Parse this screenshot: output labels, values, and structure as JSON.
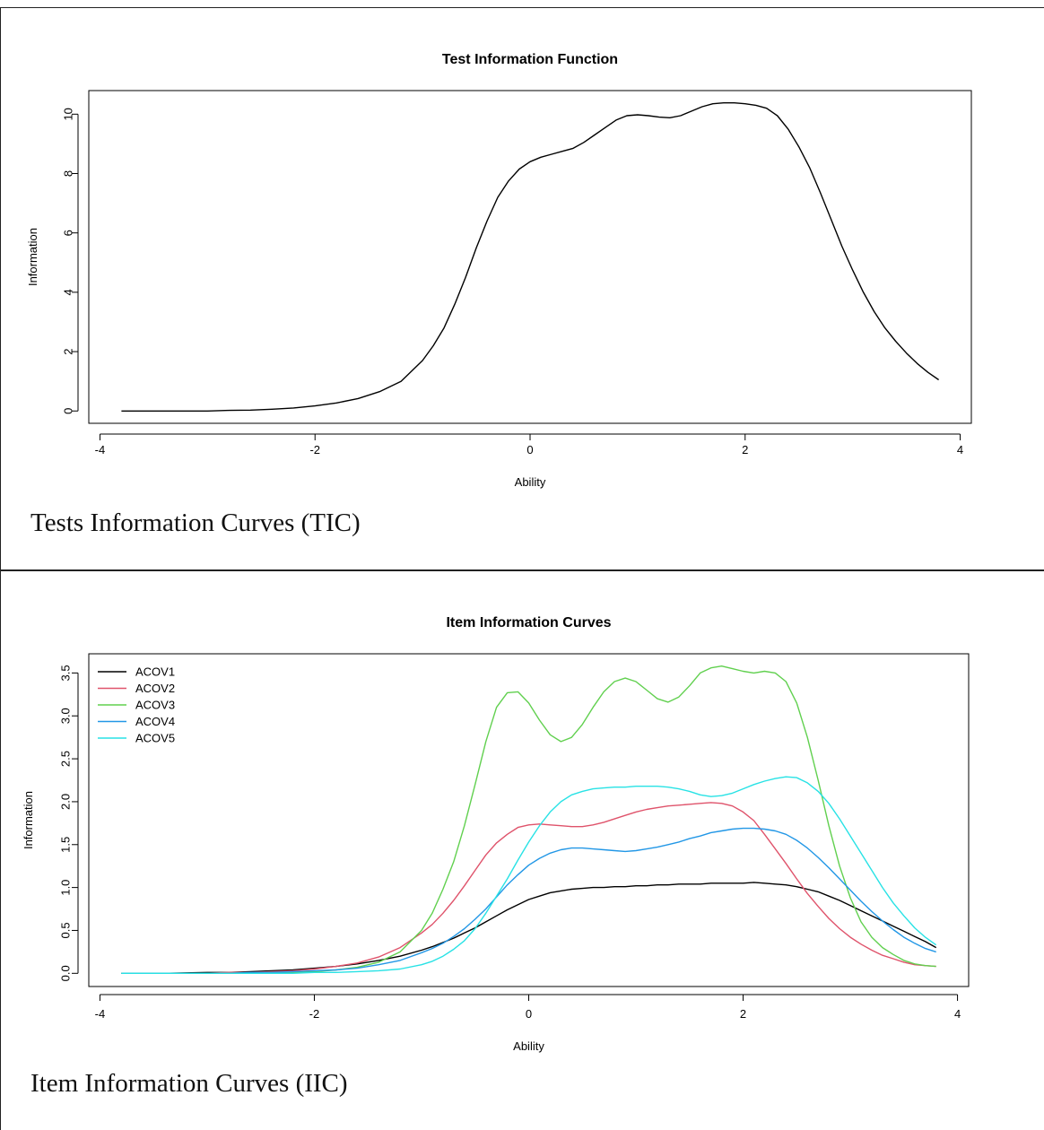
{
  "chart_data": [
    {
      "type": "line",
      "title": "Test Information Function",
      "xlabel": "Ability",
      "ylabel": "Information",
      "xlim": [
        -4,
        4
      ],
      "ylim": [
        0,
        10.5
      ],
      "xticks": [
        "-4",
        "-2",
        "0",
        "2",
        "4"
      ],
      "yticks": [
        "0",
        "2",
        "4",
        "6",
        "8",
        "10"
      ],
      "grid": false,
      "series": [
        {
          "color": "#000000",
          "x": [
            -3.8,
            -3.4,
            -3.0,
            -2.8,
            -2.6,
            -2.4,
            -2.2,
            -2.0,
            -1.8,
            -1.6,
            -1.4,
            -1.2,
            -1.0,
            -0.9,
            -0.8,
            -0.7,
            -0.6,
            -0.5,
            -0.4,
            -0.3,
            -0.2,
            -0.1,
            0.0,
            0.1,
            0.2,
            0.3,
            0.4,
            0.5,
            0.6,
            0.7,
            0.8,
            0.9,
            1.0,
            1.1,
            1.2,
            1.3,
            1.4,
            1.5,
            1.6,
            1.7,
            1.8,
            1.9,
            2.0,
            2.1,
            2.2,
            2.3,
            2.4,
            2.5,
            2.6,
            2.7,
            2.8,
            2.9,
            3.0,
            3.1,
            3.2,
            3.3,
            3.4,
            3.5,
            3.6,
            3.7,
            3.8
          ],
          "y": [
            0,
            0,
            0,
            0.02,
            0.03,
            0.06,
            0.1,
            0.17,
            0.27,
            0.42,
            0.65,
            1.0,
            1.7,
            2.2,
            2.8,
            3.6,
            4.5,
            5.5,
            6.4,
            7.2,
            7.75,
            8.15,
            8.4,
            8.55,
            8.65,
            8.75,
            8.85,
            9.05,
            9.3,
            9.55,
            9.8,
            9.95,
            9.98,
            9.95,
            9.9,
            9.88,
            9.95,
            10.1,
            10.25,
            10.35,
            10.38,
            10.38,
            10.35,
            10.3,
            10.2,
            9.95,
            9.5,
            8.9,
            8.2,
            7.35,
            6.45,
            5.55,
            4.75,
            4.0,
            3.35,
            2.8,
            2.35,
            1.95,
            1.6,
            1.3,
            1.05
          ]
        }
      ]
    },
    {
      "type": "line",
      "title": "Item Information Curves",
      "xlabel": "Ability",
      "ylabel": "Information",
      "xlim": [
        -4,
        4
      ],
      "ylim": [
        0,
        3.5
      ],
      "xticks": [
        "-4",
        "-2",
        "0",
        "2",
        "4"
      ],
      "yticks": [
        "0.0",
        "0.5",
        "1.0",
        "1.5",
        "2.0",
        "2.5",
        "3.0",
        "3.5"
      ],
      "grid": false,
      "legend": "top-left",
      "x": [
        -3.8,
        -3.4,
        -3.0,
        -2.8,
        -2.6,
        -2.4,
        -2.2,
        -2.0,
        -1.8,
        -1.6,
        -1.4,
        -1.2,
        -1.0,
        -0.9,
        -0.8,
        -0.7,
        -0.6,
        -0.5,
        -0.4,
        -0.3,
        -0.2,
        -0.1,
        0.0,
        0.1,
        0.2,
        0.3,
        0.4,
        0.5,
        0.6,
        0.7,
        0.8,
        0.9,
        1.0,
        1.1,
        1.2,
        1.3,
        1.4,
        1.5,
        1.6,
        1.7,
        1.8,
        1.9,
        2.0,
        2.1,
        2.2,
        2.3,
        2.4,
        2.5,
        2.6,
        2.7,
        2.8,
        2.9,
        3.0,
        3.1,
        3.2,
        3.3,
        3.4,
        3.5,
        3.6,
        3.7,
        3.8
      ],
      "series": [
        {
          "name": "ACOV1",
          "color": "#000000",
          "values": [
            0,
            0,
            0.01,
            0.01,
            0.02,
            0.03,
            0.04,
            0.06,
            0.08,
            0.11,
            0.15,
            0.2,
            0.27,
            0.31,
            0.36,
            0.41,
            0.47,
            0.53,
            0.6,
            0.67,
            0.74,
            0.8,
            0.86,
            0.9,
            0.94,
            0.96,
            0.98,
            0.99,
            1.0,
            1.0,
            1.01,
            1.01,
            1.02,
            1.02,
            1.03,
            1.03,
            1.04,
            1.04,
            1.04,
            1.05,
            1.05,
            1.05,
            1.05,
            1.06,
            1.05,
            1.04,
            1.03,
            1.01,
            0.98,
            0.95,
            0.9,
            0.85,
            0.79,
            0.73,
            0.67,
            0.61,
            0.55,
            0.49,
            0.43,
            0.37,
            0.3
          ]
        },
        {
          "name": "ACOV2",
          "color": "#df536b",
          "values": [
            0,
            0,
            0,
            0.01,
            0.01,
            0.02,
            0.03,
            0.05,
            0.08,
            0.12,
            0.19,
            0.3,
            0.47,
            0.57,
            0.7,
            0.85,
            1.02,
            1.2,
            1.38,
            1.52,
            1.62,
            1.7,
            1.73,
            1.74,
            1.73,
            1.72,
            1.71,
            1.71,
            1.73,
            1.76,
            1.8,
            1.84,
            1.88,
            1.91,
            1.93,
            1.95,
            1.96,
            1.97,
            1.98,
            1.99,
            1.98,
            1.95,
            1.88,
            1.78,
            1.62,
            1.45,
            1.28,
            1.1,
            0.93,
            0.78,
            0.64,
            0.52,
            0.42,
            0.34,
            0.27,
            0.21,
            0.17,
            0.13,
            0.1,
            0.09,
            0.08
          ]
        },
        {
          "name": "ACOV3",
          "color": "#61d04f",
          "values": [
            0,
            0,
            0,
            0,
            0,
            0.01,
            0.01,
            0.02,
            0.04,
            0.07,
            0.13,
            0.25,
            0.5,
            0.7,
            0.98,
            1.3,
            1.72,
            2.2,
            2.7,
            3.1,
            3.27,
            3.28,
            3.15,
            2.95,
            2.78,
            2.7,
            2.75,
            2.9,
            3.1,
            3.28,
            3.4,
            3.44,
            3.4,
            3.3,
            3.2,
            3.16,
            3.22,
            3.35,
            3.5,
            3.56,
            3.58,
            3.55,
            3.52,
            3.5,
            3.52,
            3.5,
            3.4,
            3.15,
            2.75,
            2.25,
            1.72,
            1.25,
            0.88,
            0.6,
            0.42,
            0.3,
            0.22,
            0.15,
            0.11,
            0.09,
            0.08
          ]
        },
        {
          "name": "ACOV4",
          "color": "#2297e6",
          "values": [
            0,
            0,
            0,
            0,
            0.01,
            0.01,
            0.02,
            0.03,
            0.04,
            0.06,
            0.1,
            0.15,
            0.24,
            0.29,
            0.35,
            0.43,
            0.52,
            0.63,
            0.75,
            0.89,
            1.03,
            1.15,
            1.26,
            1.34,
            1.4,
            1.44,
            1.46,
            1.46,
            1.45,
            1.44,
            1.43,
            1.42,
            1.43,
            1.45,
            1.47,
            1.5,
            1.53,
            1.57,
            1.6,
            1.64,
            1.66,
            1.68,
            1.69,
            1.69,
            1.68,
            1.66,
            1.62,
            1.55,
            1.46,
            1.35,
            1.23,
            1.1,
            0.97,
            0.84,
            0.72,
            0.61,
            0.51,
            0.42,
            0.35,
            0.29,
            0.25
          ]
        },
        {
          "name": "ACOV5",
          "color": "#28e2e5",
          "values": [
            0,
            0,
            0,
            0,
            0,
            0,
            0,
            0.01,
            0.01,
            0.02,
            0.03,
            0.05,
            0.1,
            0.14,
            0.2,
            0.28,
            0.38,
            0.52,
            0.7,
            0.9,
            1.1,
            1.32,
            1.53,
            1.72,
            1.88,
            2.0,
            2.08,
            2.12,
            2.15,
            2.16,
            2.17,
            2.17,
            2.18,
            2.18,
            2.18,
            2.17,
            2.15,
            2.12,
            2.08,
            2.06,
            2.07,
            2.1,
            2.15,
            2.2,
            2.24,
            2.27,
            2.29,
            2.28,
            2.22,
            2.12,
            1.98,
            1.8,
            1.6,
            1.4,
            1.2,
            1.0,
            0.82,
            0.67,
            0.53,
            0.42,
            0.33
          ]
        }
      ]
    }
  ],
  "captions": {
    "top": "Tests Information Curves (TIC)",
    "bottom": "Item Information Curves (IIC)"
  }
}
